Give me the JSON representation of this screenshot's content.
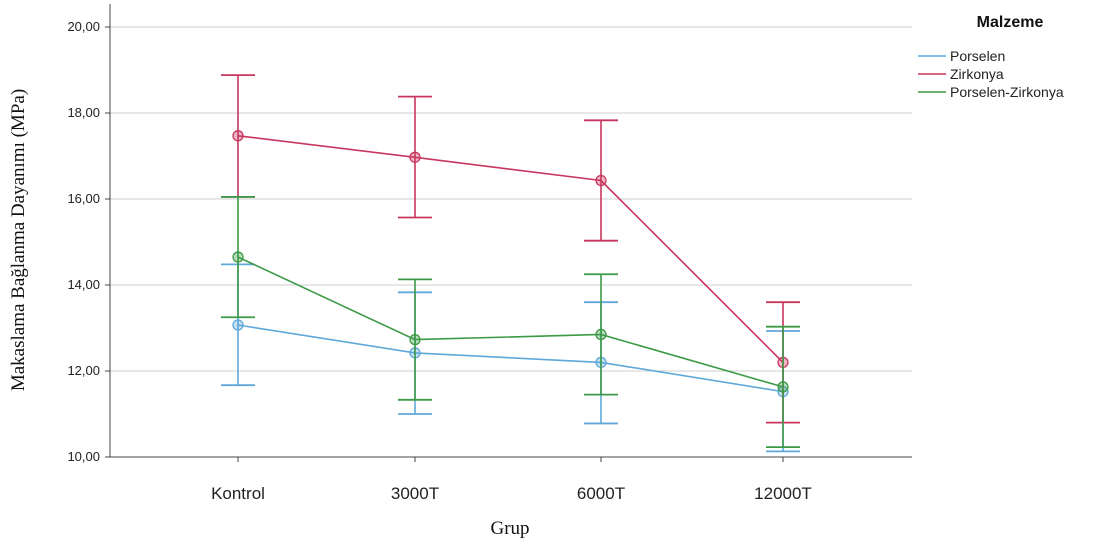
{
  "chart_data": {
    "type": "line",
    "xlabel": "Grup",
    "ylabel": "Makaslama Bağlanma Dayanımı (MPa)",
    "categories": [
      "Kontrol",
      "3000T",
      "6000T",
      "12000T"
    ],
    "ylim": [
      10,
      20
    ],
    "yticks": [
      "10,00",
      "12,00",
      "14,00",
      "16,00",
      "18,00",
      "20,00"
    ],
    "ytick_values": [
      10,
      12,
      14,
      16,
      18,
      20
    ],
    "grid": "horizontal",
    "legend": {
      "title": "Malzeme",
      "placement": "right"
    },
    "error_bars": true,
    "series": [
      {
        "name": "Porselen",
        "color": "#5fa8d9",
        "values": [
          13.07,
          12.42,
          12.2,
          11.52
        ],
        "lower": [
          11.67,
          11.0,
          10.78,
          10.13
        ],
        "upper": [
          14.48,
          13.83,
          13.6,
          12.93
        ]
      },
      {
        "name": "Zirkonya",
        "color": "#c8365f",
        "values": [
          17.47,
          16.97,
          16.43,
          12.2
        ],
        "lower": [
          16.05,
          15.57,
          15.03,
          10.8
        ],
        "upper": [
          18.88,
          18.38,
          17.83,
          13.6
        ]
      },
      {
        "name": "Porselen-Zirkonya",
        "color": "#3c9a46",
        "values": [
          14.65,
          12.73,
          12.85,
          11.63
        ],
        "lower": [
          13.25,
          11.33,
          11.45,
          10.23
        ],
        "upper": [
          16.05,
          14.13,
          14.25,
          13.03
        ]
      }
    ]
  }
}
